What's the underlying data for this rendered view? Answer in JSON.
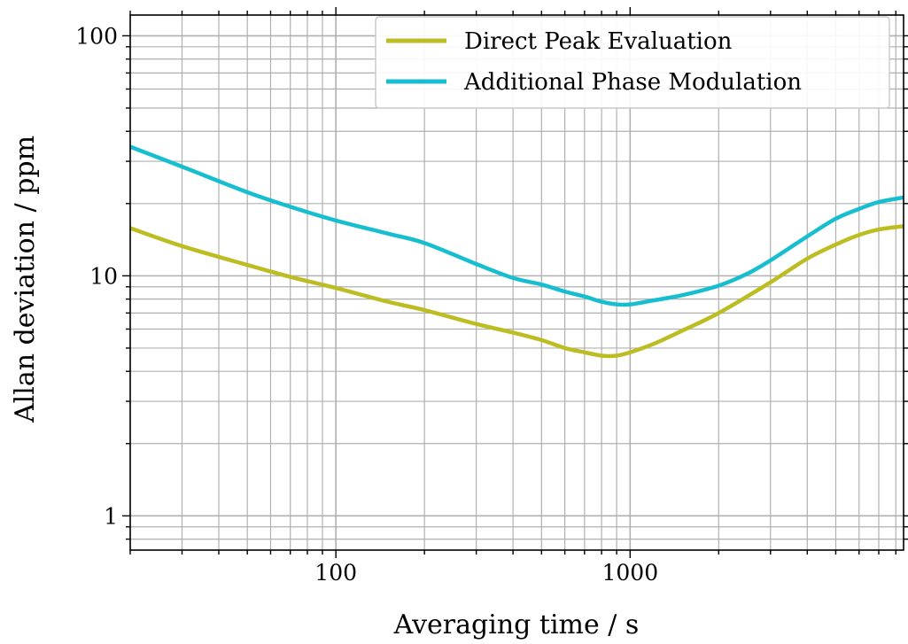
{
  "chart_data": {
    "type": "line",
    "xlabel": "Averaging time / s",
    "ylabel": "Allan deviation / ppm",
    "xscale": "log",
    "yscale": "log",
    "xlim": [
      20,
      8500
    ],
    "ylim": [
      0.72,
      122
    ],
    "grid": "major and minor",
    "legend_position": "top-right",
    "x_tick_labels": [
      {
        "value": 100,
        "label": "100"
      },
      {
        "value": 1000,
        "label": "1000"
      }
    ],
    "y_tick_labels": [
      {
        "value": 1,
        "label": "1"
      },
      {
        "value": 10,
        "label": "10"
      },
      {
        "value": 100,
        "label": "100"
      }
    ],
    "series": [
      {
        "name": "Direct Peak Evaluation",
        "color": "#bcbd22",
        "x": [
          20,
          30,
          50,
          70,
          100,
          150,
          200,
          300,
          400,
          500,
          600,
          700,
          800,
          900,
          1000,
          1200,
          1500,
          2000,
          3000,
          4000,
          5000,
          6000,
          7000,
          8500
        ],
        "y": [
          15.8,
          13.3,
          11.1,
          9.9,
          8.9,
          7.8,
          7.2,
          6.3,
          5.8,
          5.4,
          5.0,
          4.8,
          4.65,
          4.65,
          4.8,
          5.2,
          5.9,
          7.0,
          9.4,
          11.8,
          13.5,
          14.8,
          15.6,
          16.1
        ]
      },
      {
        "name": "Additional Phase Modulation",
        "color": "#17becf",
        "x": [
          20,
          30,
          50,
          70,
          100,
          150,
          200,
          300,
          400,
          500,
          600,
          700,
          800,
          900,
          1000,
          1200,
          1500,
          2000,
          2500,
          3000,
          4000,
          5000,
          6000,
          7000,
          8500
        ],
        "y": [
          34.5,
          28.5,
          22.3,
          19.4,
          17.0,
          15.0,
          13.7,
          11.2,
          9.8,
          9.2,
          8.6,
          8.2,
          7.8,
          7.6,
          7.6,
          7.9,
          8.3,
          9.1,
          10.2,
          11.6,
          14.6,
          17.3,
          19.0,
          20.3,
          21.2
        ]
      }
    ]
  }
}
